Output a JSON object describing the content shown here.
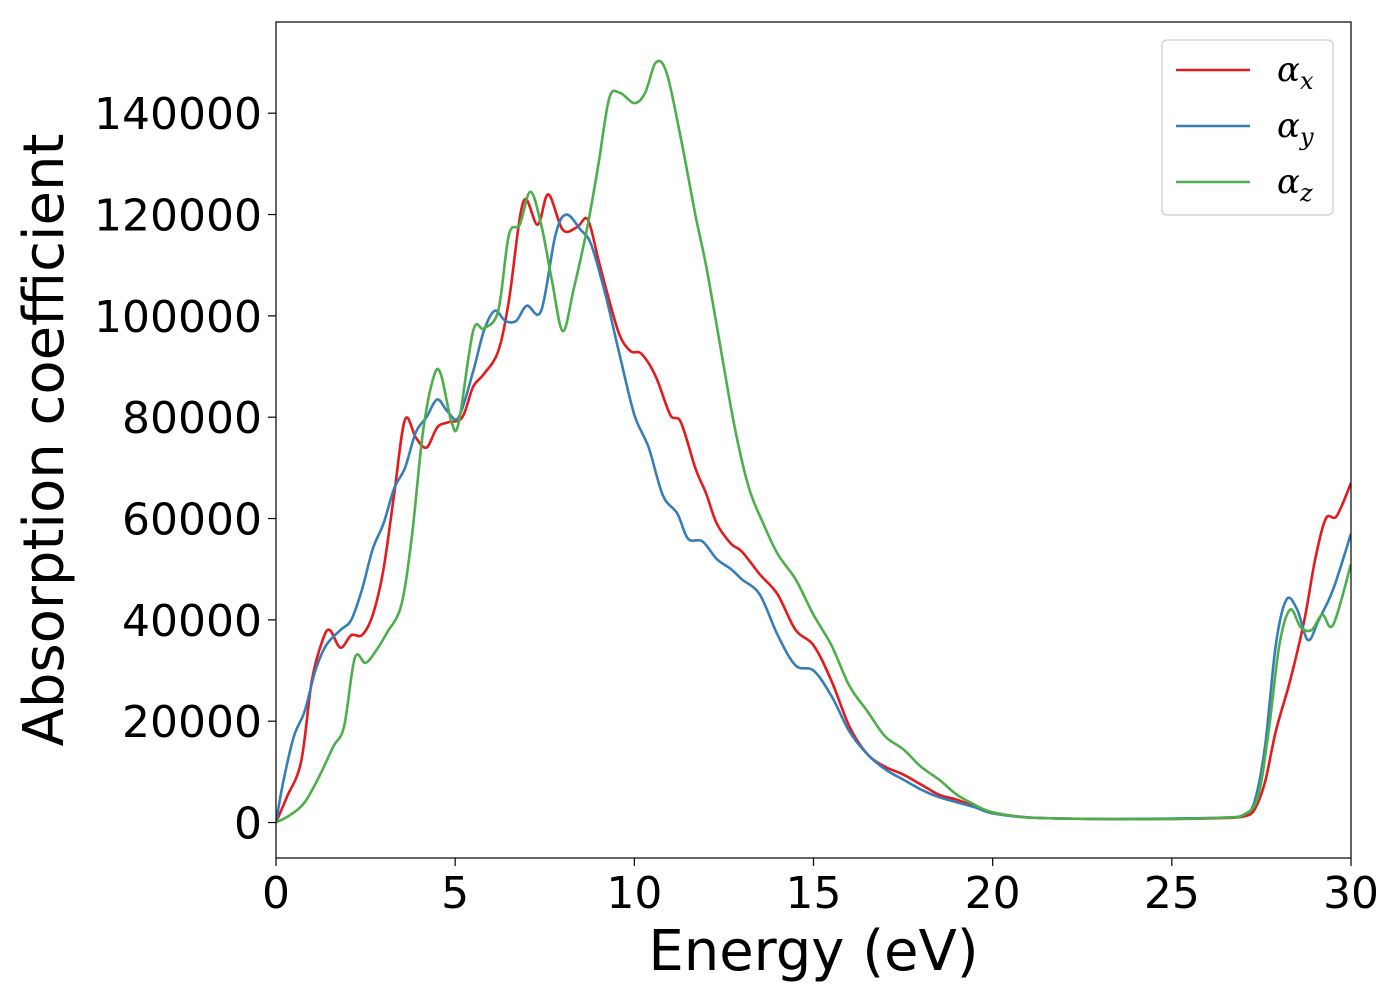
{
  "chart_data": {
    "type": "line",
    "title": "",
    "xlabel": "Energy (eV)",
    "ylabel": "Absorption coefficient",
    "xlim": [
      0,
      30
    ],
    "ylim": [
      -7000,
      158000
    ],
    "xticks": [
      0,
      5,
      10,
      15,
      20,
      25,
      30
    ],
    "yticks": [
      0,
      20000,
      40000,
      60000,
      80000,
      100000,
      120000,
      140000
    ],
    "grid": false,
    "legend_position": "top-right",
    "series": [
      {
        "name": "α",
        "subscript": "x",
        "color": "#e41a1c",
        "points": [
          [
            0,
            0
          ],
          [
            0.3,
            5000
          ],
          [
            0.7,
            12000
          ],
          [
            1.0,
            28000
          ],
          [
            1.3,
            36000
          ],
          [
            1.5,
            38000
          ],
          [
            1.8,
            34500
          ],
          [
            2.1,
            37000
          ],
          [
            2.4,
            37000
          ],
          [
            2.7,
            41000
          ],
          [
            3.0,
            50000
          ],
          [
            3.3,
            65000
          ],
          [
            3.6,
            79500
          ],
          [
            3.9,
            76000
          ],
          [
            4.2,
            74000
          ],
          [
            4.5,
            78000
          ],
          [
            4.8,
            79000
          ],
          [
            5.2,
            80000
          ],
          [
            5.5,
            86000
          ],
          [
            5.8,
            88500
          ],
          [
            6.2,
            93000
          ],
          [
            6.5,
            103000
          ],
          [
            6.9,
            122500
          ],
          [
            7.3,
            118000
          ],
          [
            7.6,
            124000
          ],
          [
            8.0,
            117000
          ],
          [
            8.4,
            117500
          ],
          [
            8.7,
            119000
          ],
          [
            9.0,
            111000
          ],
          [
            9.3,
            103000
          ],
          [
            9.6,
            96000
          ],
          [
            9.9,
            93000
          ],
          [
            10.2,
            92500
          ],
          [
            10.6,
            88000
          ],
          [
            11.0,
            80500
          ],
          [
            11.3,
            79000
          ],
          [
            11.7,
            70000
          ],
          [
            12.0,
            65000
          ],
          [
            12.3,
            59000
          ],
          [
            12.7,
            55000
          ],
          [
            13.0,
            53500
          ],
          [
            13.5,
            49000
          ],
          [
            14.0,
            45000
          ],
          [
            14.5,
            38000
          ],
          [
            15.0,
            35000
          ],
          [
            15.5,
            28000
          ],
          [
            16.0,
            19000
          ],
          [
            16.5,
            13500
          ],
          [
            17.0,
            11000
          ],
          [
            17.5,
            9500
          ],
          [
            18.0,
            7500
          ],
          [
            18.5,
            5500
          ],
          [
            19.0,
            4500
          ],
          [
            19.5,
            3200
          ],
          [
            20.0,
            2000
          ],
          [
            21.0,
            1000
          ],
          [
            23.0,
            700
          ],
          [
            25.0,
            700
          ],
          [
            26.5,
            900
          ],
          [
            27.0,
            1200
          ],
          [
            27.3,
            2500
          ],
          [
            27.6,
            8000
          ],
          [
            27.9,
            18000
          ],
          [
            28.3,
            28000
          ],
          [
            28.7,
            40000
          ],
          [
            29.0,
            52000
          ],
          [
            29.3,
            60000
          ],
          [
            29.6,
            60500
          ],
          [
            30.0,
            67000
          ]
        ]
      },
      {
        "name": "α",
        "subscript": "y",
        "color": "#377eb8",
        "points": [
          [
            0,
            0
          ],
          [
            0.2,
            8000
          ],
          [
            0.5,
            17000
          ],
          [
            0.8,
            22000
          ],
          [
            1.1,
            30000
          ],
          [
            1.4,
            35000
          ],
          [
            1.8,
            38000
          ],
          [
            2.1,
            40000
          ],
          [
            2.4,
            46000
          ],
          [
            2.7,
            54000
          ],
          [
            3.0,
            59000
          ],
          [
            3.3,
            66000
          ],
          [
            3.6,
            70000
          ],
          [
            3.9,
            77000
          ],
          [
            4.2,
            80000
          ],
          [
            4.5,
            83500
          ],
          [
            4.8,
            81000
          ],
          [
            5.1,
            80000
          ],
          [
            5.5,
            89000
          ],
          [
            5.8,
            97000
          ],
          [
            6.1,
            101000
          ],
          [
            6.4,
            99000
          ],
          [
            6.7,
            99000
          ],
          [
            7.0,
            102000
          ],
          [
            7.4,
            101000
          ],
          [
            7.8,
            116000
          ],
          [
            8.1,
            120000
          ],
          [
            8.5,
            117000
          ],
          [
            8.8,
            114000
          ],
          [
            9.2,
            104000
          ],
          [
            9.6,
            92000
          ],
          [
            10.0,
            80500
          ],
          [
            10.4,
            74000
          ],
          [
            10.8,
            64500
          ],
          [
            11.2,
            61000
          ],
          [
            11.5,
            56000
          ],
          [
            11.9,
            55500
          ],
          [
            12.3,
            52000
          ],
          [
            12.7,
            50000
          ],
          [
            13.0,
            48000
          ],
          [
            13.5,
            45000
          ],
          [
            14.0,
            37000
          ],
          [
            14.5,
            31000
          ],
          [
            15.0,
            30000
          ],
          [
            15.5,
            25000
          ],
          [
            16.0,
            18000
          ],
          [
            16.5,
            13500
          ],
          [
            17.0,
            10500
          ],
          [
            17.5,
            8500
          ],
          [
            18.0,
            6500
          ],
          [
            18.5,
            5000
          ],
          [
            19.0,
            4000
          ],
          [
            19.5,
            3000
          ],
          [
            20.0,
            1800
          ],
          [
            21.0,
            1000
          ],
          [
            23.0,
            700
          ],
          [
            25.0,
            800
          ],
          [
            26.5,
            1000
          ],
          [
            27.0,
            1500
          ],
          [
            27.3,
            4000
          ],
          [
            27.6,
            15000
          ],
          [
            27.9,
            35000
          ],
          [
            28.2,
            44000
          ],
          [
            28.5,
            42000
          ],
          [
            28.8,
            36000
          ],
          [
            29.1,
            40000
          ],
          [
            29.5,
            46000
          ],
          [
            30.0,
            57000
          ]
        ]
      },
      {
        "name": "α",
        "subscript": "z",
        "color": "#4daf4a",
        "points": [
          [
            0,
            0
          ],
          [
            0.4,
            1500
          ],
          [
            0.8,
            4000
          ],
          [
            1.2,
            9000
          ],
          [
            1.6,
            15000
          ],
          [
            1.9,
            19000
          ],
          [
            2.2,
            32500
          ],
          [
            2.5,
            31500
          ],
          [
            2.8,
            34000
          ],
          [
            3.1,
            37500
          ],
          [
            3.5,
            43000
          ],
          [
            3.8,
            57000
          ],
          [
            4.1,
            77000
          ],
          [
            4.4,
            88000
          ],
          [
            4.6,
            88500
          ],
          [
            4.9,
            79000
          ],
          [
            5.1,
            79000
          ],
          [
            5.5,
            97000
          ],
          [
            5.8,
            97500
          ],
          [
            6.2,
            101000
          ],
          [
            6.5,
            116000
          ],
          [
            6.8,
            118000
          ],
          [
            7.1,
            124500
          ],
          [
            7.4,
            118000
          ],
          [
            7.7,
            107000
          ],
          [
            8.0,
            97000
          ],
          [
            8.3,
            105000
          ],
          [
            8.7,
            118000
          ],
          [
            9.0,
            130000
          ],
          [
            9.3,
            143000
          ],
          [
            9.6,
            144000
          ],
          [
            10.0,
            142000
          ],
          [
            10.3,
            144000
          ],
          [
            10.6,
            150000
          ],
          [
            10.9,
            148000
          ],
          [
            11.3,
            135000
          ],
          [
            11.7,
            120000
          ],
          [
            12.0,
            110000
          ],
          [
            12.4,
            94000
          ],
          [
            12.8,
            78000
          ],
          [
            13.2,
            66000
          ],
          [
            13.6,
            59000
          ],
          [
            14.0,
            53000
          ],
          [
            14.5,
            48000
          ],
          [
            15.0,
            41000
          ],
          [
            15.5,
            35000
          ],
          [
            16.0,
            27000
          ],
          [
            16.5,
            22000
          ],
          [
            17.0,
            17000
          ],
          [
            17.5,
            14500
          ],
          [
            18.0,
            11000
          ],
          [
            18.5,
            8500
          ],
          [
            19.0,
            5500
          ],
          [
            19.5,
            3500
          ],
          [
            20.0,
            2000
          ],
          [
            21.0,
            1000
          ],
          [
            23.0,
            700
          ],
          [
            25.0,
            700
          ],
          [
            26.5,
            1000
          ],
          [
            27.0,
            1500
          ],
          [
            27.4,
            5000
          ],
          [
            27.7,
            18000
          ],
          [
            28.0,
            35000
          ],
          [
            28.3,
            42000
          ],
          [
            28.6,
            38500
          ],
          [
            28.9,
            38000
          ],
          [
            29.2,
            41000
          ],
          [
            29.5,
            39000
          ],
          [
            30.0,
            51000
          ]
        ]
      }
    ]
  }
}
